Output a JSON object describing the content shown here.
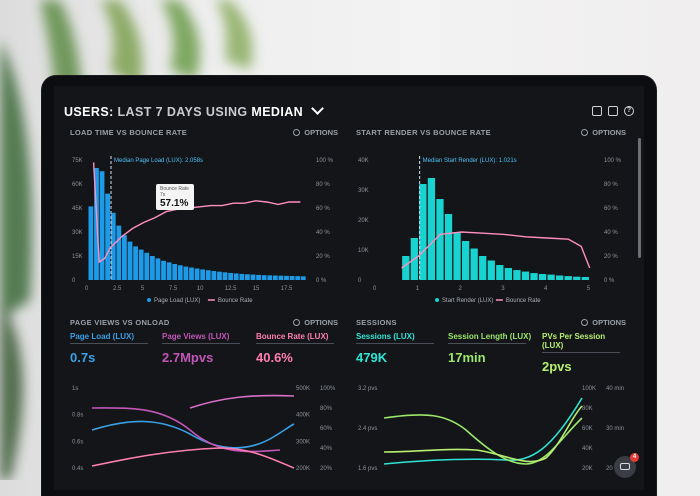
{
  "header": {
    "p1": "USERS:",
    "p2": "LAST 7 DAYS",
    "p3": "USING",
    "p4": "MEDIAN"
  },
  "icons": [
    "monitor-icon",
    "chart-icon",
    "help-icon"
  ],
  "panels": {
    "load": {
      "title": "LOAD TIME VS BOUNCE RATE",
      "options": "OPTIONS",
      "median_label": "Median Page Load (LUX): 2.058s",
      "tooltip_label": "Bounce Rate",
      "tooltip_sub": "7s",
      "tooltip_value": "57.1%",
      "legend": [
        "Page Load (LUX)",
        "Bounce Rate"
      ]
    },
    "render": {
      "title": "START RENDER VS BOUNCE RATE",
      "options": "OPTIONS",
      "median_label": "Median Start Render (LUX): 1.021s",
      "legend": [
        "Start Render (LUX)",
        "Bounce Rate"
      ]
    },
    "pageviews": {
      "title": "PAGE VIEWS VS ONLOAD",
      "options": "OPTIONS",
      "metrics": [
        {
          "label": "Page Load (LUX)",
          "value": "0.7s",
          "color": "#3aa0e8"
        },
        {
          "label": "Page Views (LUX)",
          "value": "2.7Mpvs",
          "color": "#c256b8"
        },
        {
          "label": "Bounce Rate (LUX)",
          "value": "40.6%",
          "color": "#ff7fb0"
        }
      ]
    },
    "sessions": {
      "title": "SESSIONS",
      "options": "OPTIONS",
      "metrics": [
        {
          "label": "Sessions (LUX)",
          "value": "479K",
          "color": "#2ee6d6"
        },
        {
          "label": "Session Length (LUX)",
          "value": "17min",
          "color": "#9be86a"
        },
        {
          "label": "PVs Per Session (LUX)",
          "value": "2pvs",
          "color": "#b6f070"
        }
      ]
    }
  },
  "chart_data": [
    {
      "type": "bar",
      "title": "LOAD TIME VS BOUNCE RATE",
      "x_ticks": [
        "0",
        "2.5",
        "5",
        "7.5",
        "10",
        "12.5",
        "15",
        "17.5"
      ],
      "y_left_ticks": [
        "0",
        "15K",
        "30K",
        "45K",
        "60K",
        "75K"
      ],
      "y_right_ticks": [
        "0 %",
        "20 %",
        "40 %",
        "60 %",
        "80 %",
        "100 %"
      ],
      "ylim": [
        0,
        75000
      ],
      "bar_width": 0.5,
      "series": [
        {
          "name": "Page Load (LUX)",
          "type": "bar",
          "color": "#1e9be8",
          "x": [
            0,
            0.5,
            1,
            1.5,
            2,
            2.5,
            3,
            3.5,
            4,
            4.5,
            5,
            5.5,
            6,
            6.5,
            7,
            7.5,
            8,
            8.5,
            9,
            9.5,
            10,
            10.5,
            11,
            11.5,
            12,
            12.5,
            13,
            13.5,
            14,
            14.5,
            15,
            15.5,
            16,
            16.5,
            17,
            17.5,
            18,
            18.5,
            19
          ],
          "values": [
            46000,
            70000,
            68000,
            54000,
            42000,
            34000,
            28000,
            24000,
            21000,
            19000,
            17000,
            15000,
            13500,
            12000,
            11000,
            10000,
            9200,
            8400,
            7800,
            7200,
            6600,
            6100,
            5600,
            5200,
            4800,
            4400,
            4100,
            3800,
            3600,
            3400,
            3200,
            3000,
            2900,
            2800,
            2700,
            2600,
            2500,
            2400,
            2300
          ]
        },
        {
          "name": "Bounce Rate",
          "type": "line",
          "color": "#ff8fbf",
          "axis": "right",
          "x": [
            0.5,
            1,
            1.5,
            2,
            3,
            4,
            5,
            6,
            7,
            8,
            9,
            10,
            11,
            12,
            13,
            14,
            15,
            16,
            17,
            18,
            19
          ],
          "values": [
            98,
            15,
            18,
            27,
            36,
            43,
            48,
            52,
            57,
            59,
            60,
            61,
            62,
            62,
            64,
            64,
            66,
            65,
            63,
            65,
            65
          ]
        }
      ],
      "annotation": {
        "x": 2.058,
        "label": "Median Page Load (LUX): 2.058s"
      }
    },
    {
      "type": "bar",
      "title": "START RENDER VS BOUNCE RATE",
      "x_ticks": [
        "0",
        "1",
        "2",
        "3",
        "4",
        "5"
      ],
      "y_left_ticks": [
        "0",
        "10K",
        "20K",
        "30K",
        "40K"
      ],
      "y_right_ticks": [
        "0 %",
        "20 %",
        "40 %",
        "60 %",
        "80 %",
        "100 %"
      ],
      "ylim": [
        0,
        40000
      ],
      "bar_width": 0.2,
      "series": [
        {
          "name": "Start Render (LUX)",
          "type": "bar",
          "color": "#19d3d0",
          "x": [
            0.6,
            0.8,
            1.0,
            1.2,
            1.4,
            1.6,
            1.8,
            2.0,
            2.2,
            2.4,
            2.6,
            2.8,
            3.0,
            3.2,
            3.4,
            3.6,
            3.8,
            4.0,
            4.2,
            4.4,
            4.6,
            4.8
          ],
          "values": [
            8000,
            14000,
            32000,
            34000,
            27000,
            22000,
            16000,
            13000,
            10500,
            8000,
            6500,
            5000,
            4000,
            3300,
            2800,
            2300,
            2000,
            1800,
            1500,
            1300,
            1100,
            1000
          ]
        },
        {
          "name": "Bounce Rate",
          "type": "line",
          "color": "#ff8fbf",
          "axis": "right",
          "x": [
            0.6,
            1,
            1.5,
            2,
            2.5,
            3,
            3.5,
            4,
            4.5,
            4.8,
            5
          ],
          "values": [
            10,
            20,
            38,
            40,
            39,
            38,
            36,
            35,
            34,
            28,
            10
          ]
        }
      ],
      "annotation": {
        "x": 1.021,
        "label": "Median Start Render (LUX): 1.021s"
      }
    },
    {
      "type": "line",
      "title": "PAGE VIEWS VS ONLOAD",
      "y_left_ticks": [
        "0.4s",
        "0.6s",
        "0.8s",
        "1s"
      ],
      "y_right_ticks_a": [
        "200K",
        "300K",
        "400K",
        "500K"
      ],
      "y_right_ticks_b": [
        "20%",
        "40%",
        "60%",
        "80%",
        "100%"
      ]
    },
    {
      "type": "line",
      "title": "SESSIONS",
      "y_left_ticks": [
        "1.6 pvs",
        "2.4 pvs",
        "3.2 pvs"
      ],
      "y_right_ticks_a": [
        "20K",
        "40K",
        "60K",
        "80K",
        "100K"
      ],
      "y_right_ticks_b": [
        "20 min",
        "30 min",
        "40 min"
      ]
    }
  ],
  "chat": {
    "badge": "4"
  }
}
